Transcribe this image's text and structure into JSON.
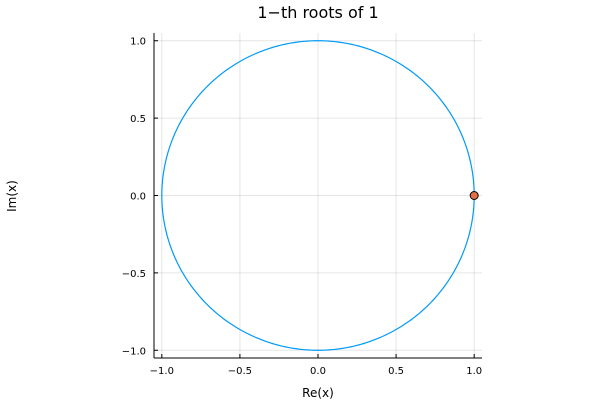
{
  "chart_data": {
    "type": "scatter",
    "title": "1−th roots of 1",
    "xlabel": "Re(x)",
    "ylabel": "Im(x)",
    "xlim": [
      -1.05,
      1.05
    ],
    "ylim": [
      -1.05,
      1.05
    ],
    "xticks": [
      -1.0,
      -0.5,
      0.0,
      0.5,
      1.0
    ],
    "yticks": [
      -1.0,
      -0.5,
      0.0,
      0.5,
      1.0
    ],
    "xtick_labels": [
      "−1.0",
      "−0.5",
      "0.0",
      "0.5",
      "1.0"
    ],
    "ytick_labels": [
      "−1.0",
      "−0.5",
      "0.0",
      "0.5",
      "1.0"
    ],
    "grid": true,
    "legend": "none",
    "series": [
      {
        "kind": "line",
        "shape": "circle",
        "center": [
          0,
          0
        ],
        "radius": 1,
        "color": "#009AF9"
      },
      {
        "kind": "points",
        "color": "#E26F46",
        "x": [
          1.0
        ],
        "y": [
          0.0
        ]
      }
    ]
  }
}
